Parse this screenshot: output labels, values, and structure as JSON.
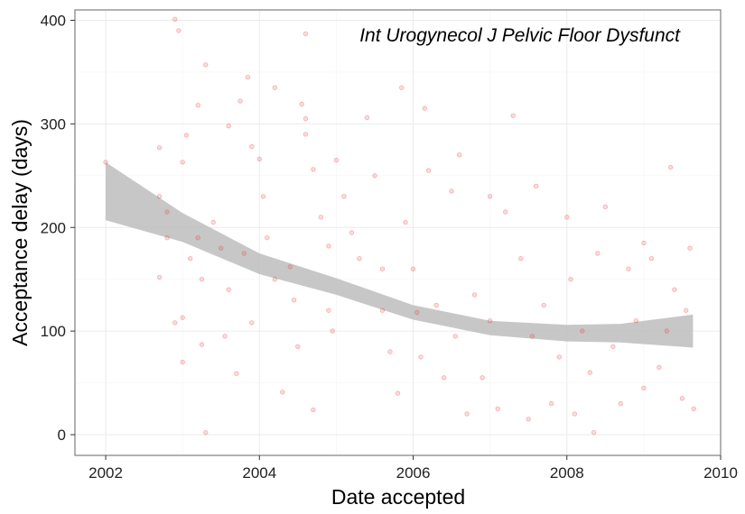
{
  "chart_data": {
    "type": "scatter",
    "title": "",
    "annotation": "Int Urogynecol J Pelvic Floor Dysfunct",
    "xlabel": "Date accepted",
    "ylabel": "Acceptance delay (days)",
    "xlim": [
      2001.6,
      2010.0
    ],
    "ylim": [
      -20,
      410
    ],
    "xticks": [
      2002,
      2004,
      2006,
      2008,
      2010
    ],
    "yticks": [
      0,
      100,
      200,
      300,
      400
    ],
    "x_tick_labels": [
      "2002",
      "2004",
      "2006",
      "2008",
      "2010"
    ],
    "y_tick_labels": [
      "0",
      "100",
      "200",
      "300",
      "400"
    ],
    "grid": true,
    "point_color": "#e8383d",
    "point_alpha": 0.18,
    "band_color": "#bdbdbd",
    "smooth": {
      "x": [
        2002.0,
        2003.0,
        2004.0,
        2005.0,
        2006.0,
        2007.0,
        2008.0,
        2008.7,
        2009.64
      ],
      "y": [
        235,
        200,
        165,
        143,
        118,
        103,
        98,
        98,
        100
      ],
      "lower": [
        207,
        186,
        155,
        135,
        111,
        96,
        90,
        89,
        84
      ],
      "upper": [
        263,
        214,
        175,
        151,
        125,
        110,
        106,
        107,
        116
      ]
    },
    "points": [
      [
        2002.0,
        263
      ],
      [
        2002.7,
        277
      ],
      [
        2002.7,
        230
      ],
      [
        2002.8,
        215
      ],
      [
        2002.8,
        190
      ],
      [
        2002.7,
        152
      ],
      [
        2002.9,
        108
      ],
      [
        2002.9,
        401
      ],
      [
        2002.95,
        390
      ],
      [
        2003.0,
        263
      ],
      [
        2003.05,
        289
      ],
      [
        2003.2,
        318
      ],
      [
        2003.3,
        357
      ],
      [
        2003.2,
        190
      ],
      [
        2003.1,
        170
      ],
      [
        2003.25,
        150
      ],
      [
        2003.0,
        113
      ],
      [
        2003.0,
        70
      ],
      [
        2003.25,
        87
      ],
      [
        2003.3,
        2
      ],
      [
        2003.4,
        205
      ],
      [
        2003.5,
        180
      ],
      [
        2003.6,
        140
      ],
      [
        2003.55,
        95
      ],
      [
        2003.7,
        59
      ],
      [
        2003.6,
        298
      ],
      [
        2003.75,
        322
      ],
      [
        2003.85,
        345
      ],
      [
        2003.9,
        278
      ],
      [
        2003.8,
        175
      ],
      [
        2003.9,
        108
      ],
      [
        2004.0,
        266
      ],
      [
        2004.05,
        230
      ],
      [
        2004.1,
        190
      ],
      [
        2004.2,
        150
      ],
      [
        2004.2,
        335
      ],
      [
        2004.3,
        41
      ],
      [
        2004.4,
        162
      ],
      [
        2004.45,
        130
      ],
      [
        2004.5,
        85
      ],
      [
        2004.55,
        319
      ],
      [
        2004.6,
        305
      ],
      [
        2004.6,
        290
      ],
      [
        2004.7,
        256
      ],
      [
        2004.8,
        210
      ],
      [
        2004.9,
        182
      ],
      [
        2004.9,
        120
      ],
      [
        2004.95,
        100
      ],
      [
        2004.6,
        387
      ],
      [
        2004.7,
        24
      ],
      [
        2005.0,
        265
      ],
      [
        2005.1,
        230
      ],
      [
        2005.2,
        195
      ],
      [
        2005.3,
        170
      ],
      [
        2005.4,
        306
      ],
      [
        2005.5,
        250
      ],
      [
        2005.6,
        160
      ],
      [
        2005.6,
        120
      ],
      [
        2005.7,
        80
      ],
      [
        2005.8,
        40
      ],
      [
        2005.85,
        335
      ],
      [
        2005.9,
        205
      ],
      [
        2006.0,
        160
      ],
      [
        2006.05,
        118
      ],
      [
        2006.1,
        75
      ],
      [
        2006.15,
        315
      ],
      [
        2006.2,
        255
      ],
      [
        2006.3,
        125
      ],
      [
        2006.4,
        55
      ],
      [
        2006.5,
        235
      ],
      [
        2006.55,
        95
      ],
      [
        2006.6,
        270
      ],
      [
        2006.7,
        20
      ],
      [
        2006.8,
        135
      ],
      [
        2006.9,
        55
      ],
      [
        2007.0,
        110
      ],
      [
        2007.0,
        230
      ],
      [
        2007.1,
        25
      ],
      [
        2007.2,
        215
      ],
      [
        2007.3,
        308
      ],
      [
        2007.4,
        170
      ],
      [
        2007.5,
        15
      ],
      [
        2007.55,
        95
      ],
      [
        2007.6,
        240
      ],
      [
        2007.7,
        125
      ],
      [
        2007.8,
        30
      ],
      [
        2007.9,
        75
      ],
      [
        2008.0,
        210
      ],
      [
        2008.05,
        150
      ],
      [
        2008.1,
        20
      ],
      [
        2008.2,
        100
      ],
      [
        2008.3,
        60
      ],
      [
        2008.35,
        2
      ],
      [
        2008.4,
        175
      ],
      [
        2008.5,
        220
      ],
      [
        2008.6,
        85
      ],
      [
        2008.7,
        30
      ],
      [
        2008.8,
        160
      ],
      [
        2008.9,
        110
      ],
      [
        2009.0,
        45
      ],
      [
        2009.0,
        185
      ],
      [
        2009.1,
        170
      ],
      [
        2009.2,
        65
      ],
      [
        2009.3,
        100
      ],
      [
        2009.35,
        258
      ],
      [
        2009.4,
        140
      ],
      [
        2009.5,
        35
      ],
      [
        2009.6,
        180
      ],
      [
        2009.65,
        25
      ],
      [
        2009.55,
        120
      ]
    ]
  }
}
